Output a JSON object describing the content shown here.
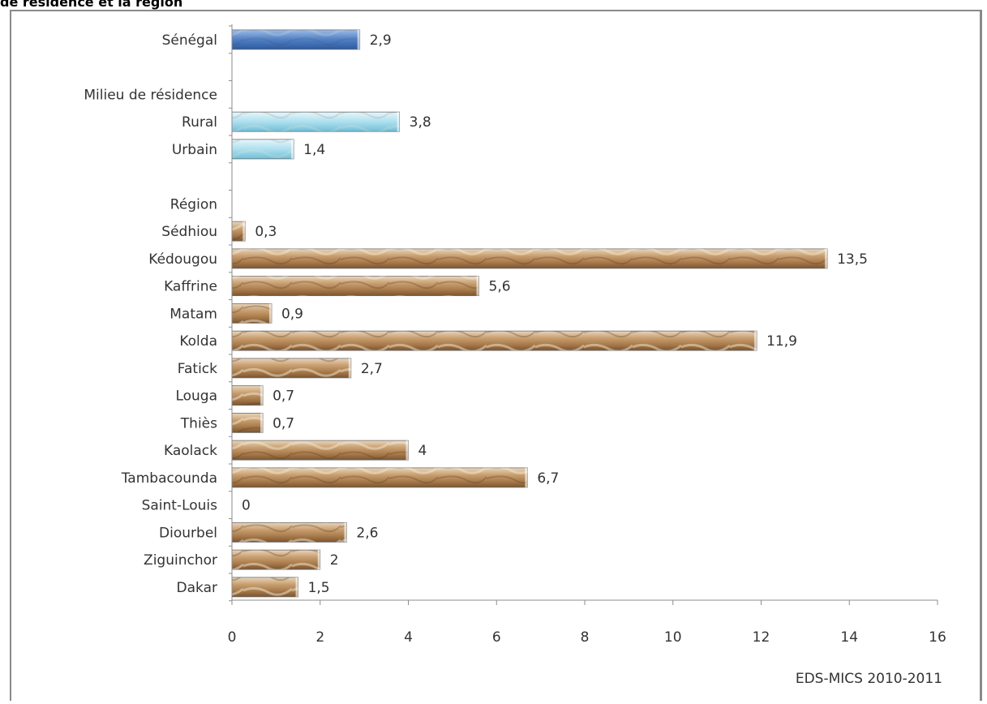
{
  "title_fragment": "de résidence et la région",
  "source_note": "EDS-MICS 2010-2011",
  "colors": {
    "national": "#4f7fc4",
    "residence": "#a9dbea",
    "region": "#b98b5a",
    "axis": "#8c8c8c"
  },
  "chart_data": {
    "type": "bar",
    "orientation": "horizontal",
    "title": "",
    "xlabel": "",
    "ylabel": "",
    "xlim": [
      0,
      16
    ],
    "x_ticks": [
      0,
      2,
      4,
      6,
      8,
      10,
      12,
      14,
      16
    ],
    "grid": false,
    "rows": [
      {
        "label": "Sénégal",
        "value": 2.9,
        "value_label": "2,9",
        "group": "national"
      },
      {
        "label": "",
        "value": null,
        "value_label": "",
        "group": "spacer"
      },
      {
        "label": "Milieu de résidence",
        "value": null,
        "value_label": "",
        "group": "header"
      },
      {
        "label": "Rural",
        "value": 3.8,
        "value_label": "3,8",
        "group": "residence"
      },
      {
        "label": "Urbain",
        "value": 1.4,
        "value_label": "1,4",
        "group": "residence"
      },
      {
        "label": "",
        "value": null,
        "value_label": "",
        "group": "spacer"
      },
      {
        "label": "Région",
        "value": null,
        "value_label": "",
        "group": "header"
      },
      {
        "label": "Sédhiou",
        "value": 0.3,
        "value_label": "0,3",
        "group": "region"
      },
      {
        "label": "Kédougou",
        "value": 13.5,
        "value_label": "13,5",
        "group": "region"
      },
      {
        "label": "Kaffrine",
        "value": 5.6,
        "value_label": "5,6",
        "group": "region"
      },
      {
        "label": "Matam",
        "value": 0.9,
        "value_label": "0,9",
        "group": "region"
      },
      {
        "label": "Kolda",
        "value": 11.9,
        "value_label": "11,9",
        "group": "region"
      },
      {
        "label": "Fatick",
        "value": 2.7,
        "value_label": "2,7",
        "group": "region"
      },
      {
        "label": "Louga",
        "value": 0.7,
        "value_label": "0,7",
        "group": "region"
      },
      {
        "label": "Thiès",
        "value": 0.7,
        "value_label": "0,7",
        "group": "region"
      },
      {
        "label": "Kaolack",
        "value": 4,
        "value_label": "4",
        "group": "region"
      },
      {
        "label": "Tambacounda",
        "value": 6.7,
        "value_label": "6,7",
        "group": "region"
      },
      {
        "label": "Saint-Louis",
        "value": 0,
        "value_label": "0",
        "group": "region"
      },
      {
        "label": "Diourbel",
        "value": 2.6,
        "value_label": "2,6",
        "group": "region"
      },
      {
        "label": "Ziguinchor",
        "value": 2,
        "value_label": "2",
        "group": "region"
      },
      {
        "label": "Dakar",
        "value": 1.5,
        "value_label": "1,5",
        "group": "region"
      }
    ]
  }
}
